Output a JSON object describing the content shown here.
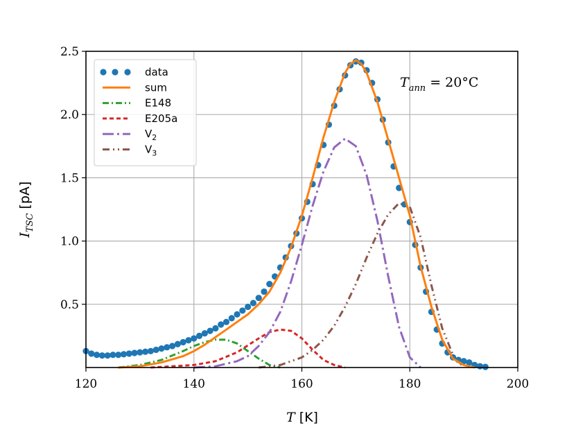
{
  "chart_data": {
    "type": "line",
    "xlabel": {
      "var": "T",
      "unit": "[K]"
    },
    "ylabel": {
      "var": "I",
      "sub": "TSC",
      "unit": "[pA]"
    },
    "xlim": [
      120,
      200
    ],
    "ylim": [
      0,
      2.5
    ],
    "xticks": [
      120,
      140,
      160,
      180,
      200
    ],
    "yticks": [
      0.5,
      1.0,
      1.5,
      2.0,
      2.5
    ],
    "ytick_labels": [
      "0.5",
      "1.0",
      "1.5",
      "2.0",
      "2.5"
    ],
    "grid": true,
    "legend_position": "top-left",
    "annotation": {
      "var": "T",
      "sub": "ann",
      "eq": " = 20°C"
    },
    "colors": {
      "data": "#1f77b4",
      "sum": "#ff7f0e",
      "E148": "#2ca02c",
      "E205a": "#d62728",
      "V2": "#9467bd",
      "V3": "#8c564b"
    },
    "legend": [
      {
        "key": "data",
        "label": "data",
        "style": "dots"
      },
      {
        "key": "sum",
        "label": "sum",
        "style": "solid"
      },
      {
        "key": "E148",
        "label": "E148",
        "style": "dashdot"
      },
      {
        "key": "E205a",
        "label": "E205a",
        "style": "dashed"
      },
      {
        "key": "V2",
        "label": "V",
        "sub": "2",
        "style": "longdashdot"
      },
      {
        "key": "V3",
        "label": "V",
        "sub": "3",
        "style": "dashdotdot"
      }
    ],
    "series": [
      {
        "key": "data",
        "name": "data",
        "x": [
          120,
          121,
          122,
          123,
          124,
          125,
          126,
          127,
          128,
          129,
          130,
          131,
          132,
          133,
          134,
          135,
          136,
          137,
          138,
          139,
          140,
          141,
          142,
          143,
          144,
          145,
          146,
          147,
          148,
          149,
          150,
          151,
          152,
          153,
          154,
          155,
          156,
          157,
          158,
          159,
          160,
          161,
          162,
          163,
          164,
          165,
          166,
          167,
          168,
          169,
          170,
          171,
          172,
          173,
          174,
          175,
          176,
          177,
          178,
          179,
          180,
          181,
          182,
          183,
          184,
          185,
          186,
          187,
          188,
          189,
          190,
          191,
          192,
          193,
          194
        ],
        "y": [
          0.13,
          0.11,
          0.1,
          0.095,
          0.095,
          0.1,
          0.1,
          0.105,
          0.11,
          0.115,
          0.12,
          0.125,
          0.13,
          0.14,
          0.15,
          0.16,
          0.17,
          0.185,
          0.2,
          0.215,
          0.23,
          0.25,
          0.27,
          0.29,
          0.31,
          0.34,
          0.36,
          0.39,
          0.42,
          0.45,
          0.48,
          0.51,
          0.55,
          0.6,
          0.66,
          0.72,
          0.79,
          0.87,
          0.96,
          1.06,
          1.18,
          1.31,
          1.45,
          1.6,
          1.76,
          1.92,
          2.07,
          2.2,
          2.31,
          2.39,
          2.42,
          2.41,
          2.35,
          2.25,
          2.12,
          1.96,
          1.78,
          1.59,
          1.42,
          1.29,
          1.15,
          0.97,
          0.79,
          0.6,
          0.44,
          0.3,
          0.19,
          0.12,
          0.08,
          0.06,
          0.05,
          0.04,
          0.02,
          0.01,
          0.005
        ]
      },
      {
        "key": "sum",
        "name": "sum",
        "x": [
          126,
          130,
          134,
          138,
          140,
          142,
          144,
          146,
          148,
          150,
          152,
          154,
          156,
          158,
          160,
          162,
          164,
          166,
          168,
          169,
          170,
          171,
          172,
          174,
          176,
          178,
          180,
          182,
          184,
          186,
          188,
          190,
          192
        ],
        "y": [
          0.0,
          0.01,
          0.04,
          0.09,
          0.13,
          0.18,
          0.24,
          0.3,
          0.36,
          0.42,
          0.5,
          0.6,
          0.75,
          0.95,
          1.2,
          1.5,
          1.82,
          2.1,
          2.33,
          2.4,
          2.43,
          2.4,
          2.33,
          2.1,
          1.8,
          1.5,
          1.2,
          0.8,
          0.48,
          0.22,
          0.07,
          0.02,
          0.0
        ]
      },
      {
        "key": "E148",
        "name": "E148",
        "x": [
          126,
          130,
          134,
          138,
          140,
          142,
          144,
          145,
          146,
          148,
          150,
          152,
          154,
          156
        ],
        "y": [
          0.0,
          0.02,
          0.06,
          0.13,
          0.17,
          0.2,
          0.22,
          0.22,
          0.22,
          0.19,
          0.13,
          0.07,
          0.02,
          0.0
        ]
      },
      {
        "key": "E205a",
        "name": "E205a",
        "x": [
          132,
          136,
          140,
          144,
          148,
          152,
          154,
          156,
          158,
          160,
          162,
          164,
          166,
          168
        ],
        "y": [
          0.0,
          0.01,
          0.02,
          0.05,
          0.12,
          0.23,
          0.28,
          0.3,
          0.29,
          0.23,
          0.14,
          0.06,
          0.02,
          0.0
        ]
      },
      {
        "key": "V2",
        "name": "V₂",
        "x": [
          140,
          144,
          148,
          150,
          152,
          154,
          156,
          158,
          160,
          162,
          164,
          166,
          168,
          170,
          172,
          174,
          176,
          178,
          180,
          182
        ],
        "y": [
          0.0,
          0.01,
          0.05,
          0.09,
          0.17,
          0.28,
          0.44,
          0.68,
          0.97,
          1.28,
          1.55,
          1.74,
          1.81,
          1.75,
          1.52,
          1.16,
          0.72,
          0.32,
          0.08,
          0.0
        ]
      },
      {
        "key": "V3",
        "name": "V₃",
        "x": [
          152,
          156,
          160,
          162,
          164,
          166,
          168,
          170,
          172,
          174,
          176,
          178,
          180,
          182,
          184,
          186,
          188,
          190
        ],
        "y": [
          0.0,
          0.02,
          0.08,
          0.14,
          0.22,
          0.33,
          0.48,
          0.66,
          0.87,
          1.06,
          1.21,
          1.3,
          1.27,
          1.03,
          0.65,
          0.31,
          0.1,
          0.0
        ]
      }
    ]
  }
}
